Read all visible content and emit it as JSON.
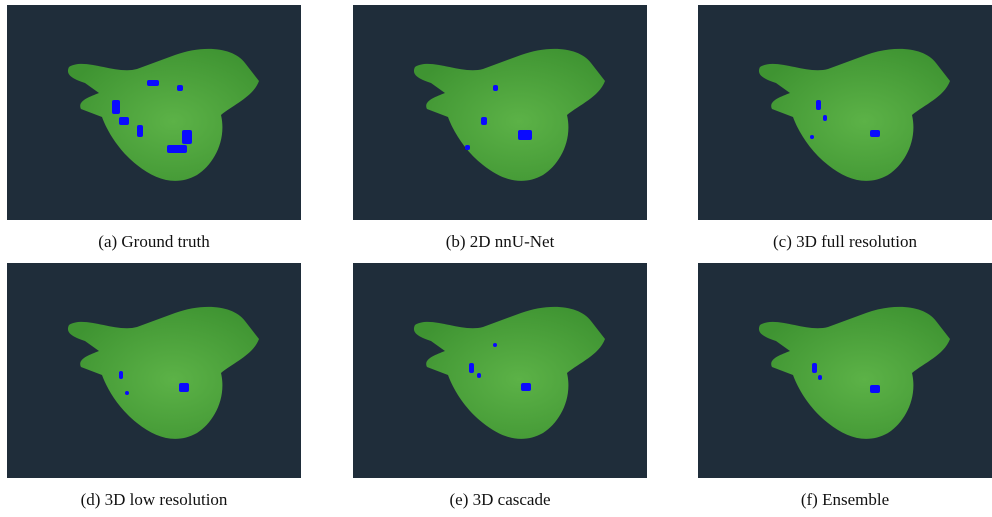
{
  "figure": {
    "panels": [
      {
        "caption": "(a) Ground truth"
      },
      {
        "caption": "(b) 2D nnU-Net"
      },
      {
        "caption": "(c) 3D full resolution"
      },
      {
        "caption": "(d) 3D low resolution"
      },
      {
        "caption": "(e) 3D cascade"
      },
      {
        "caption": "(f) Ensemble"
      }
    ]
  }
}
